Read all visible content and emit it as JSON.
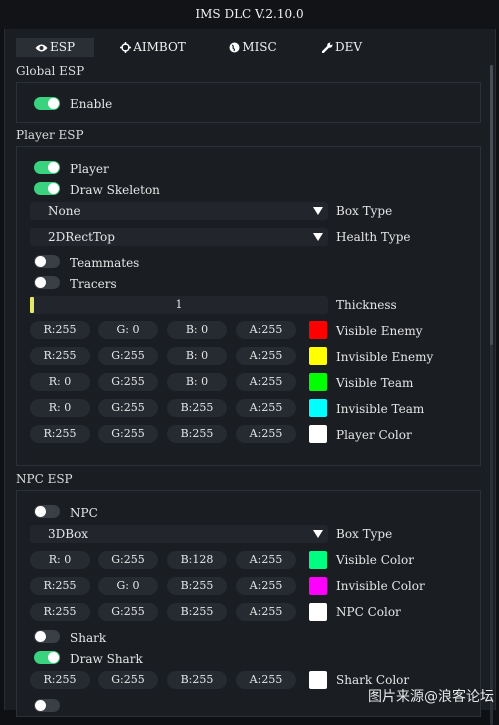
{
  "window_title": "IMS DLC V.2.10.0",
  "tabs": [
    {
      "label": "ESP",
      "icon": "eye-icon"
    },
    {
      "label": "AIMBOT",
      "icon": "crosshair-icon"
    },
    {
      "label": "MISC",
      "icon": "globe-icon"
    },
    {
      "label": "DEV",
      "icon": "wrench-icon"
    }
  ],
  "global_esp": {
    "title": "Global ESP",
    "enable": {
      "label": "Enable",
      "on": true
    }
  },
  "player_esp": {
    "title": "Player ESP",
    "player": {
      "label": "Player",
      "on": true
    },
    "draw_skeleton": {
      "label": "Draw Skeleton",
      "on": true
    },
    "box_type": {
      "value": "None",
      "label": "Box Type"
    },
    "health_type": {
      "value": "2DRectTop",
      "label": "Health Type"
    },
    "teammates": {
      "label": "Teammates",
      "on": false
    },
    "tracers": {
      "label": "Tracers",
      "on": false
    },
    "thickness": {
      "value": "1",
      "label": "Thickness"
    },
    "colors": [
      {
        "r": "R:255",
        "g": "G:  0",
        "b": "B:  0",
        "a": "A:255",
        "swatch": "#ff0000",
        "label": "Visible Enemy"
      },
      {
        "r": "R:255",
        "g": "G:255",
        "b": "B:  0",
        "a": "A:255",
        "swatch": "#ffff00",
        "label": "Invisible Enemy"
      },
      {
        "r": "R:  0",
        "g": "G:255",
        "b": "B:  0",
        "a": "A:255",
        "swatch": "#00ff00",
        "label": "Visible Team"
      },
      {
        "r": "R:  0",
        "g": "G:255",
        "b": "B:255",
        "a": "A:255",
        "swatch": "#00ffff",
        "label": "Invisible Team"
      },
      {
        "r": "R:255",
        "g": "G:255",
        "b": "B:255",
        "a": "A:255",
        "swatch": "#ffffff",
        "label": "Player Color"
      }
    ]
  },
  "npc_esp": {
    "title": "NPC ESP",
    "npc": {
      "label": "NPC",
      "on": false
    },
    "box_type": {
      "value": "3DBox",
      "label": "Box Type"
    },
    "colors": [
      {
        "r": "R:  0",
        "g": "G:255",
        "b": "B:128",
        "a": "A:255",
        "swatch": "#00ff80",
        "label": "Visible Color"
      },
      {
        "r": "R:255",
        "g": "G:  0",
        "b": "B:255",
        "a": "A:255",
        "swatch": "#ff00ff",
        "label": "Invisible Color"
      },
      {
        "r": "R:255",
        "g": "G:255",
        "b": "B:255",
        "a": "A:255",
        "swatch": "#ffffff",
        "label": "NPC Color"
      }
    ],
    "shark": {
      "label": "Shark",
      "on": false
    },
    "draw_shark": {
      "label": "Draw Shark",
      "on": true
    },
    "shark_color": {
      "r": "R:255",
      "g": "G:255",
      "b": "B:255",
      "a": "A:255",
      "swatch": "#ffffff",
      "label": "Shark Color"
    }
  },
  "accent_on": "#3ad27f",
  "watermark": "图片来源@浪客论坛"
}
